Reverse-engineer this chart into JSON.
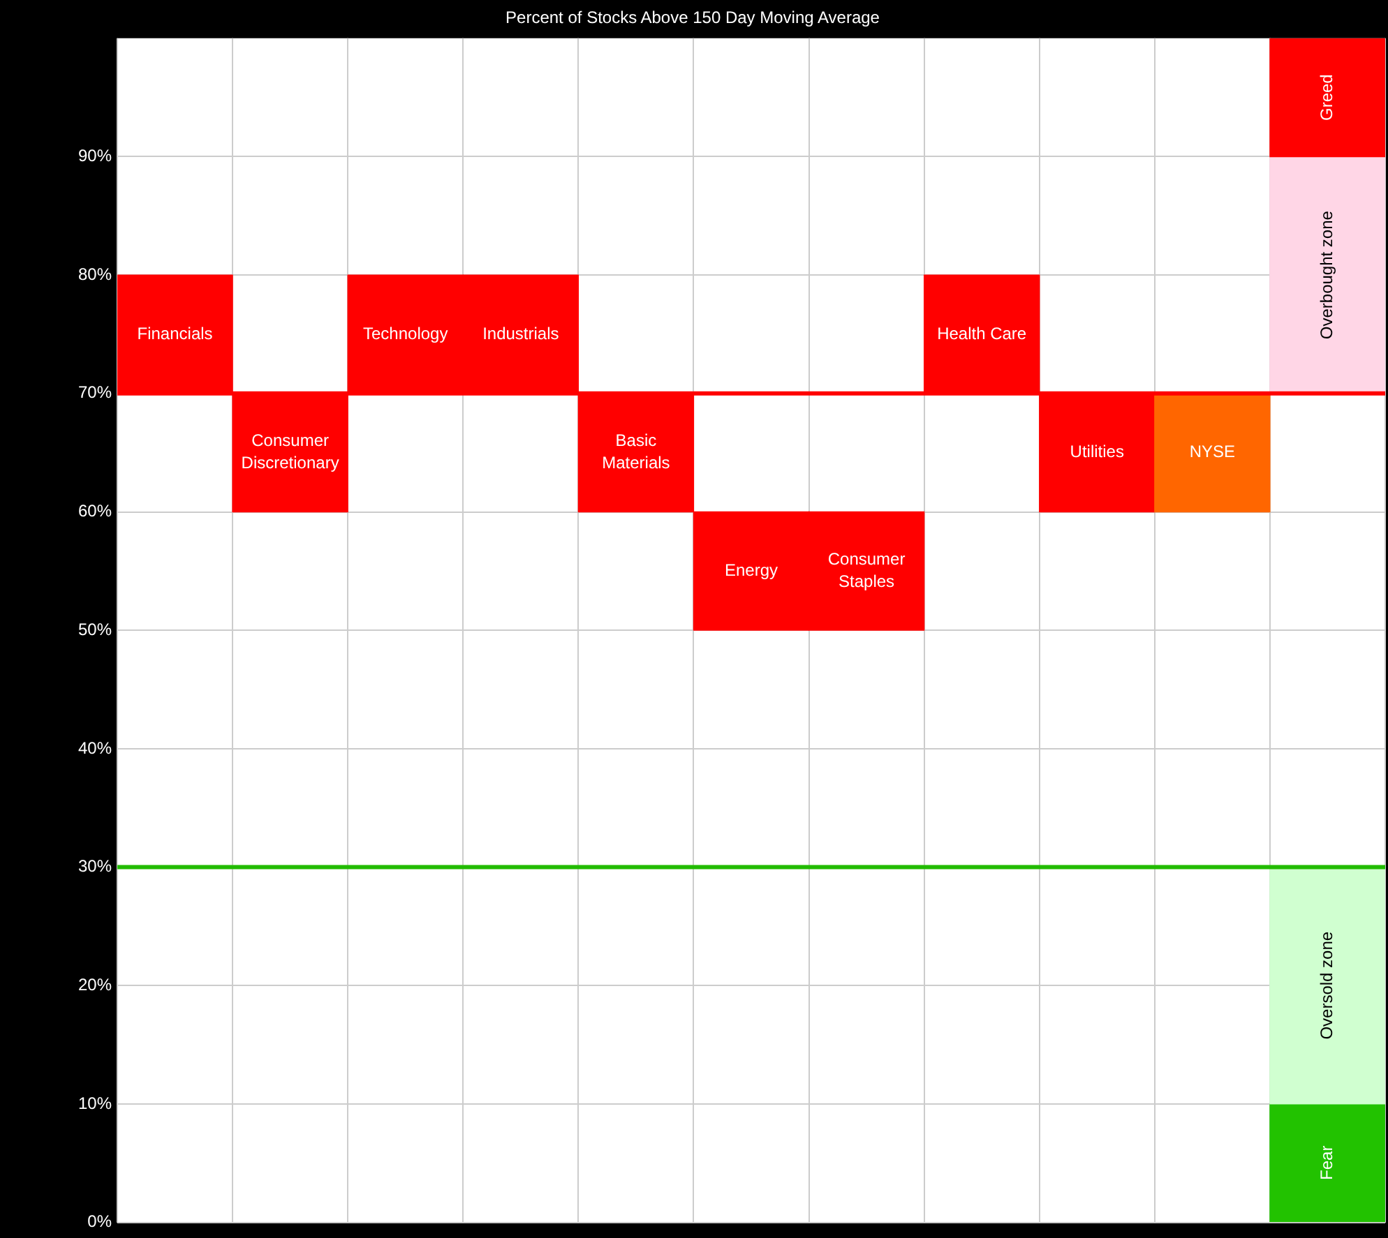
{
  "chart_data": {
    "type": "bar",
    "title": "Percent of Stocks Above 150 Day Moving Average",
    "categories": [
      "Financials",
      "Consumer Discretionary",
      "Technology",
      "Industrials",
      "Basic Materials",
      "Energy",
      "Consumer Staples",
      "Health Care",
      "Utilities",
      "NYSE",
      null
    ],
    "series": [
      {
        "values": [
          10,
          10,
          10,
          10,
          10,
          10,
          10,
          10,
          10,
          10,
          null
        ],
        "base": [
          70,
          60,
          70,
          70,
          60,
          50,
          50,
          70,
          60,
          60,
          null
        ],
        "colors": [
          "#ff0000",
          "#ff0000",
          "#ff0000",
          "#ff0000",
          "#ff0000",
          "#ff0000",
          "#ff0000",
          "#ff0000",
          "#ff0000",
          "#ff6600",
          null
        ]
      },
      {
        "name": "Greed",
        "color": "#ff0000",
        "values": [
          null,
          null,
          null,
          null,
          null,
          null,
          null,
          null,
          null,
          null,
          10
        ],
        "base": [
          null,
          null,
          null,
          null,
          null,
          null,
          null,
          null,
          null,
          null,
          90
        ]
      },
      {
        "name": "Overbought zone",
        "color": "#ffd6e6",
        "values": [
          null,
          null,
          null,
          null,
          null,
          null,
          null,
          null,
          null,
          null,
          20
        ],
        "base": [
          null,
          null,
          null,
          null,
          null,
          null,
          null,
          null,
          null,
          null,
          70
        ]
      },
      {
        "name": "Oversold zone",
        "color": "#d0ffd0",
        "values": [
          null,
          null,
          null,
          null,
          null,
          null,
          null,
          null,
          null,
          null,
          20
        ],
        "base": [
          null,
          null,
          null,
          null,
          null,
          null,
          null,
          null,
          null,
          null,
          10
        ]
      },
      {
        "name": "Fear",
        "color": "#22c200",
        "values": [
          null,
          null,
          null,
          null,
          null,
          null,
          null,
          null,
          null,
          null,
          10
        ],
        "base": [
          null,
          null,
          null,
          null,
          null,
          null,
          null,
          null,
          null,
          null,
          0
        ]
      }
    ],
    "ylim": [
      0,
      100
    ],
    "yticks": [
      {
        "value": 0,
        "label": "0%"
      },
      {
        "value": 10,
        "label": "10%"
      },
      {
        "value": 20,
        "label": "20%"
      },
      {
        "value": 30,
        "label": "30%"
      },
      {
        "value": 40,
        "label": "40%"
      },
      {
        "value": 50,
        "label": "50%"
      },
      {
        "value": 60,
        "label": "60%"
      },
      {
        "value": 70,
        "label": "70%"
      },
      {
        "value": 80,
        "label": "80%"
      },
      {
        "value": 90,
        "label": "90%"
      }
    ],
    "grid": true,
    "tick_labels": "y",
    "ref_lines": [
      {
        "axis": "y",
        "value": 70,
        "color": "#ff0000"
      },
      {
        "axis": "y",
        "value": 30,
        "color": "#22bb00"
      }
    ]
  }
}
